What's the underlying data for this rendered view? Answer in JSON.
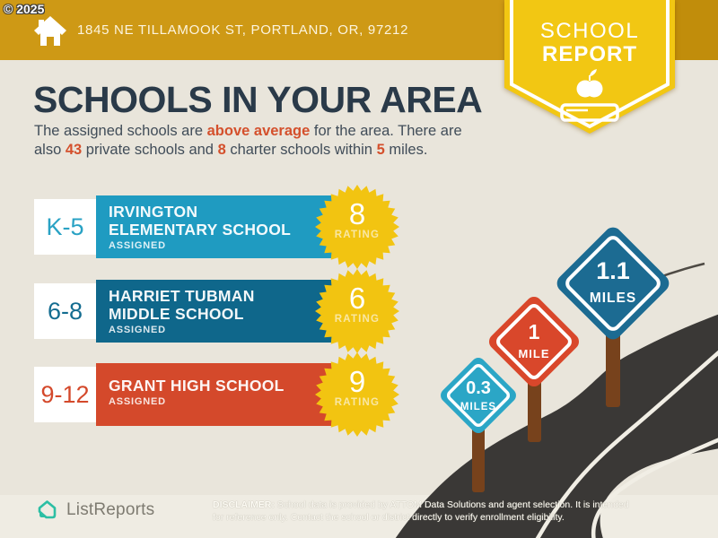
{
  "header": {
    "copyright": "© 2025",
    "address": "1845 NE TILLAMOOK ST, PORTLAND, OR, 97212",
    "badge": {
      "line1": "SCHOOL",
      "line2": "REPORT"
    }
  },
  "main": {
    "title": "SCHOOLS IN YOUR AREA",
    "subtitle": {
      "t1": "The assigned schools are ",
      "b1": "above average",
      "t2": " for the area. There are",
      "t3": "also ",
      "b2": "43",
      "t4": " private schools and ",
      "b3": "8",
      "t5": " charter schools within ",
      "b4": "5",
      "t6": " miles."
    }
  },
  "schools": [
    {
      "grade": "K-5",
      "name_line1": "IRVINGTON",
      "name_line2": "ELEMENTARY SCHOOL",
      "status": "ASSIGNED",
      "rating": "8",
      "rating_label": "RATING"
    },
    {
      "grade": "6-8",
      "name_line1": "HARRIET TUBMAN",
      "name_line2": "MIDDLE SCHOOL",
      "status": "ASSIGNED",
      "rating": "6",
      "rating_label": "RATING"
    },
    {
      "grade": "9-12",
      "name_line1": "GRANT HIGH SCHOOL",
      "name_line2": "",
      "status": "ASSIGNED",
      "rating": "9",
      "rating_label": "RATING"
    }
  ],
  "signs": [
    {
      "value": "0.3",
      "unit": "MILES"
    },
    {
      "value": "1",
      "unit": "MILE"
    },
    {
      "value": "1.1",
      "unit": "MILES"
    }
  ],
  "footer": {
    "brand": "ListReports",
    "disclaimer_label": "DISCLAIMER:",
    "disclaimer_rest1": "School data is provided by ATTOM Data Solutions and agent selection. It is intended",
    "disclaimer_line2": "for reference only. Contact the school or district directly to verify enrollment eligibility."
  },
  "colors": {
    "banner_gold": "#CE9915",
    "banner_gold_dark": "#C18D0B",
    "badge_yellow": "#F2C713",
    "background": "#E9E5DB",
    "heading_navy": "#2A3A49",
    "accent_red": "#D4492B",
    "bar_blue": "#1F9BC1",
    "bar_teal_dark": "#0F678B",
    "sign_teal": "#2BA6C6",
    "sign_blue": "#1C6B92",
    "road_gray": "#3A3836",
    "post_brown": "#77421C",
    "brand_teal": "#2CBFA4"
  }
}
